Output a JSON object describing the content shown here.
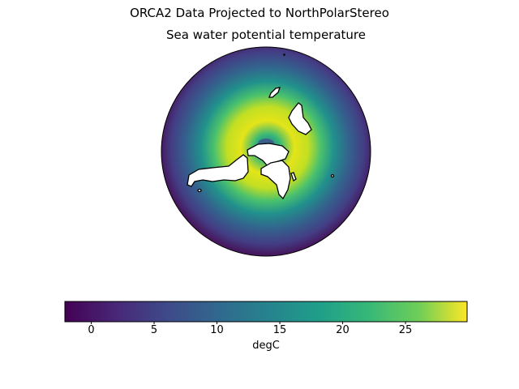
{
  "figure": {
    "suptitle": "ORCA2 Data Projected to NorthPolarStereo",
    "title": "Sea water potential temperature"
  },
  "chart_data": {
    "type": "heatmap",
    "projection": "NorthPolarStereo",
    "colormap": "viridis",
    "colorbar": {
      "orientation": "horizontal",
      "label": "degC",
      "range": [
        -2.1,
        29.9
      ],
      "ticks": [
        0,
        5,
        10,
        15,
        20,
        25
      ],
      "tick_labels": [
        "0",
        "5",
        "10",
        "15",
        "20",
        "25"
      ]
    },
    "colors": [
      "#440154",
      "#3b528b",
      "#21918c",
      "#5ec962",
      "#fde725"
    ]
  }
}
